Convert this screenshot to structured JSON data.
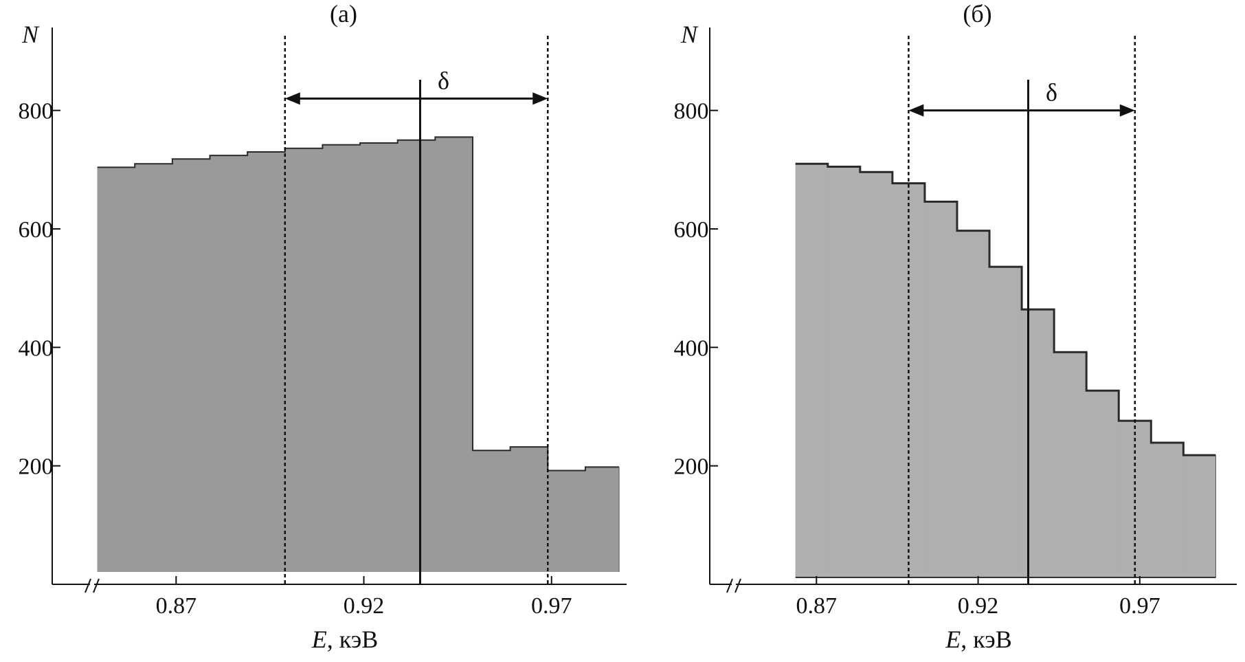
{
  "chart_data": [
    {
      "type": "bar",
      "title": "(а)",
      "xlabel_var": "E",
      "xlabel_unit": ", кэВ",
      "ylabel": "N",
      "xticks": [
        0.87,
        0.92,
        0.97
      ],
      "xtick_labels": [
        "0.87",
        "0.92",
        "0.97"
      ],
      "yticks": [
        200,
        400,
        600,
        800
      ],
      "ytick_labels": [
        "200",
        "400",
        "600",
        "800"
      ],
      "xlim": [
        0.837,
        0.99
      ],
      "ylim": [
        0,
        940
      ],
      "fill_color": "#999a9c",
      "bins": [
        {
          "x0": 0.849,
          "x1": 0.859,
          "value": 704
        },
        {
          "x0": 0.859,
          "x1": 0.869,
          "value": 710
        },
        {
          "x0": 0.869,
          "x1": 0.879,
          "value": 718
        },
        {
          "x0": 0.879,
          "x1": 0.889,
          "value": 724
        },
        {
          "x0": 0.889,
          "x1": 0.899,
          "value": 730
        },
        {
          "x0": 0.899,
          "x1": 0.909,
          "value": 736
        },
        {
          "x0": 0.909,
          "x1": 0.919,
          "value": 742
        },
        {
          "x0": 0.919,
          "x1": 0.929,
          "value": 745
        },
        {
          "x0": 0.929,
          "x1": 0.939,
          "value": 750
        },
        {
          "x0": 0.939,
          "x1": 0.949,
          "value": 755
        },
        {
          "x0": 0.949,
          "x1": 0.959,
          "value": 226
        },
        {
          "x0": 0.959,
          "x1": 0.969,
          "value": 232
        },
        {
          "x0": 0.969,
          "x1": 0.979,
          "value": 192
        },
        {
          "x0": 0.979,
          "x1": 0.988,
          "value": 198
        }
      ],
      "dashed_lines": [
        0.899,
        0.969
      ],
      "center_line": 0.935,
      "interval": {
        "from": 0.899,
        "to": 0.969,
        "y": 820,
        "label": "δ"
      }
    },
    {
      "type": "bar",
      "title": "(б)",
      "xlabel_var": "E",
      "xlabel_unit": ", кэВ",
      "ylabel": "N",
      "xticks": [
        0.87,
        0.92,
        0.97
      ],
      "xtick_labels": [
        "0.87",
        "0.92",
        "0.97"
      ],
      "yticks": [
        200,
        400,
        600,
        800
      ],
      "ytick_labels": [
        "200",
        "400",
        "600",
        "800"
      ],
      "xlim": [
        0.837,
        1.0
      ],
      "ylim": [
        0,
        940
      ],
      "fill_color": "#aeafb1",
      "bins": [
        {
          "x0": 0.8635,
          "x1": 0.8735,
          "value": 710
        },
        {
          "x0": 0.8735,
          "x1": 0.8835,
          "value": 705
        },
        {
          "x0": 0.8835,
          "x1": 0.8935,
          "value": 696
        },
        {
          "x0": 0.8935,
          "x1": 0.9035,
          "value": 677
        },
        {
          "x0": 0.9035,
          "x1": 0.9135,
          "value": 646
        },
        {
          "x0": 0.9135,
          "x1": 0.9235,
          "value": 597
        },
        {
          "x0": 0.9235,
          "x1": 0.9335,
          "value": 536
        },
        {
          "x0": 0.9335,
          "x1": 0.9435,
          "value": 464
        },
        {
          "x0": 0.9435,
          "x1": 0.9535,
          "value": 392
        },
        {
          "x0": 0.9535,
          "x1": 0.9635,
          "value": 327
        },
        {
          "x0": 0.9635,
          "x1": 0.9735,
          "value": 276
        },
        {
          "x0": 0.9735,
          "x1": 0.9835,
          "value": 239
        },
        {
          "x0": 0.9835,
          "x1": 0.9935,
          "value": 218
        }
      ],
      "dashed_lines": [
        0.8985,
        0.9685
      ],
      "center_line": 0.9355,
      "interval": {
        "from": 0.8985,
        "to": 0.9685,
        "y": 800,
        "label": "δ"
      }
    }
  ]
}
